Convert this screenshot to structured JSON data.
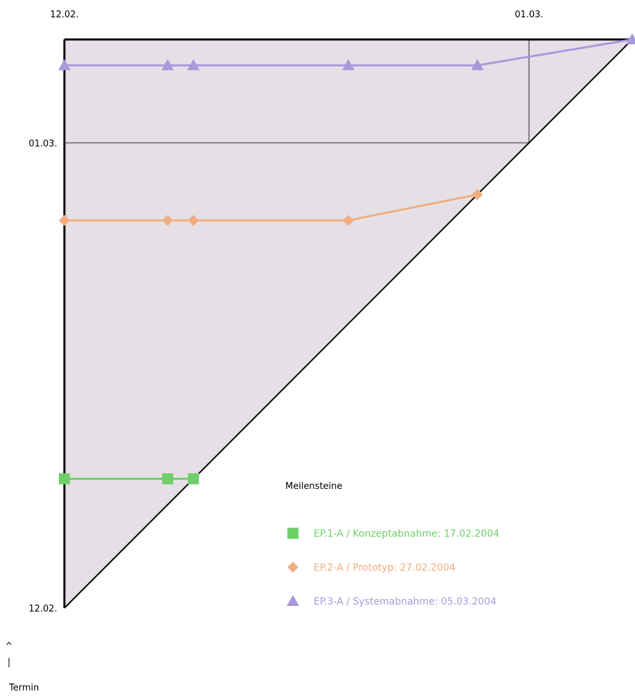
{
  "chart_data": {
    "type": "line",
    "subtype": "milestone-trend-analysis",
    "x_ticks": [
      {
        "date": "2004-02-12",
        "label": "12.02."
      },
      {
        "date": "2004-03-01",
        "label": "01.03."
      }
    ],
    "y_ticks": [
      {
        "date": "2004-02-12",
        "label": "12.02."
      },
      {
        "date": "2004-03-01",
        "label": "01.03."
      }
    ],
    "xlim": [
      "2004-02-12",
      "2004-03-05"
    ],
    "ylim": [
      "2004-02-12",
      "2004-03-05"
    ],
    "y_axis_label_arrow": "^",
    "y_axis_label_bar": "|",
    "y_axis_label": "Termin",
    "legend_title": "Meilensteine",
    "legend_position": "bottom-right",
    "plot_area_color": "#e6e0e6",
    "series": [
      {
        "name": "EP.1-A / Konzeptabnahme: 17.02.2004",
        "marker": "square",
        "color": "#6fcf6a",
        "points": [
          {
            "x": "2004-02-12",
            "y": "2004-02-17"
          },
          {
            "x": "2004-02-16",
            "y": "2004-02-17"
          },
          {
            "x": "2004-02-17",
            "y": "2004-02-17"
          }
        ]
      },
      {
        "name": "EP.2-A / Prototyp: 27.02.2004",
        "marker": "diamond",
        "color": "#f0ad82",
        "points": [
          {
            "x": "2004-02-12",
            "y": "2004-02-27"
          },
          {
            "x": "2004-02-16",
            "y": "2004-02-27"
          },
          {
            "x": "2004-02-17",
            "y": "2004-02-27"
          },
          {
            "x": "2004-02-23",
            "y": "2004-02-27"
          },
          {
            "x": "2004-02-28",
            "y": "2004-02-28"
          }
        ]
      },
      {
        "name": "EP.3-A / Systemabnahme: 05.03.2004",
        "marker": "triangle",
        "color": "#a899dc",
        "points": [
          {
            "x": "2004-02-12",
            "y": "2004-03-04"
          },
          {
            "x": "2004-02-16",
            "y": "2004-03-04"
          },
          {
            "x": "2004-02-17",
            "y": "2004-03-04"
          },
          {
            "x": "2004-02-23",
            "y": "2004-03-04"
          },
          {
            "x": "2004-02-28",
            "y": "2004-03-04"
          },
          {
            "x": "2004-03-05",
            "y": "2004-03-05"
          }
        ]
      }
    ]
  }
}
